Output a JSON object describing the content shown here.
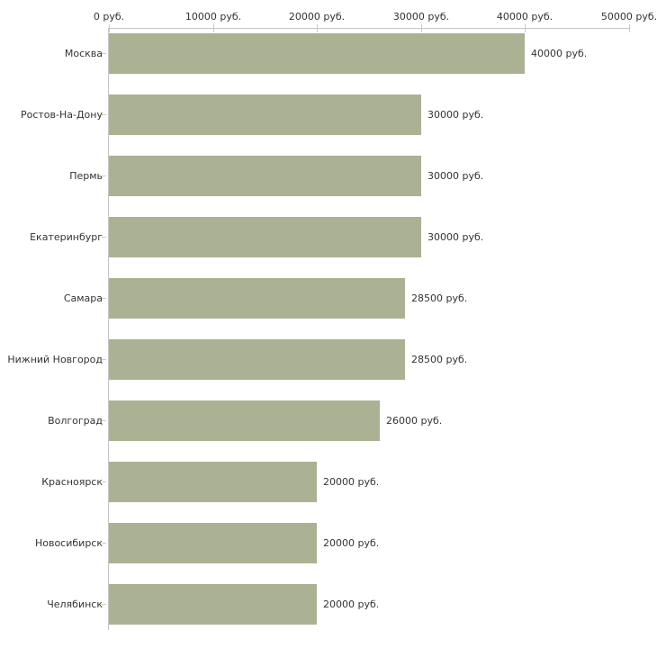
{
  "chart_data": {
    "type": "bar",
    "orientation": "horizontal",
    "title": "",
    "xlabel": "",
    "ylabel": "",
    "unit": "руб.",
    "categories": [
      "Москва",
      "Ростов-На-Дону",
      "Пермь",
      "Екатеринбург",
      "Самара",
      "Нижний Новгород",
      "Волгоград",
      "Красноярск",
      "Новосибирск",
      "Челябинск"
    ],
    "values": [
      40000,
      30000,
      30000,
      30000,
      28500,
      28500,
      26000,
      20000,
      20000,
      20000
    ],
    "value_labels": [
      "40000 руб.",
      "30000 руб.",
      "30000 руб.",
      "30000 руб.",
      "28500 руб.",
      "28500 руб.",
      "26000 руб.",
      "20000 руб.",
      "20000 руб.",
      "20000 руб."
    ],
    "x_axis": {
      "position": "top",
      "range": [
        0,
        50000
      ],
      "ticks": [
        0,
        10000,
        20000,
        30000,
        40000,
        50000
      ],
      "tick_labels": [
        "0 руб.",
        "10000 руб.",
        "20000 руб.",
        "30000 руб.",
        "40000 руб.",
        "50000 руб."
      ]
    },
    "grid": false,
    "legend_position": "none",
    "colors": {
      "bar_fill": "#aab293",
      "axis_line": "#c6c6c6",
      "tick_mark": "#cfcfa6",
      "text": "#333333",
      "background": "#ffffff"
    }
  }
}
